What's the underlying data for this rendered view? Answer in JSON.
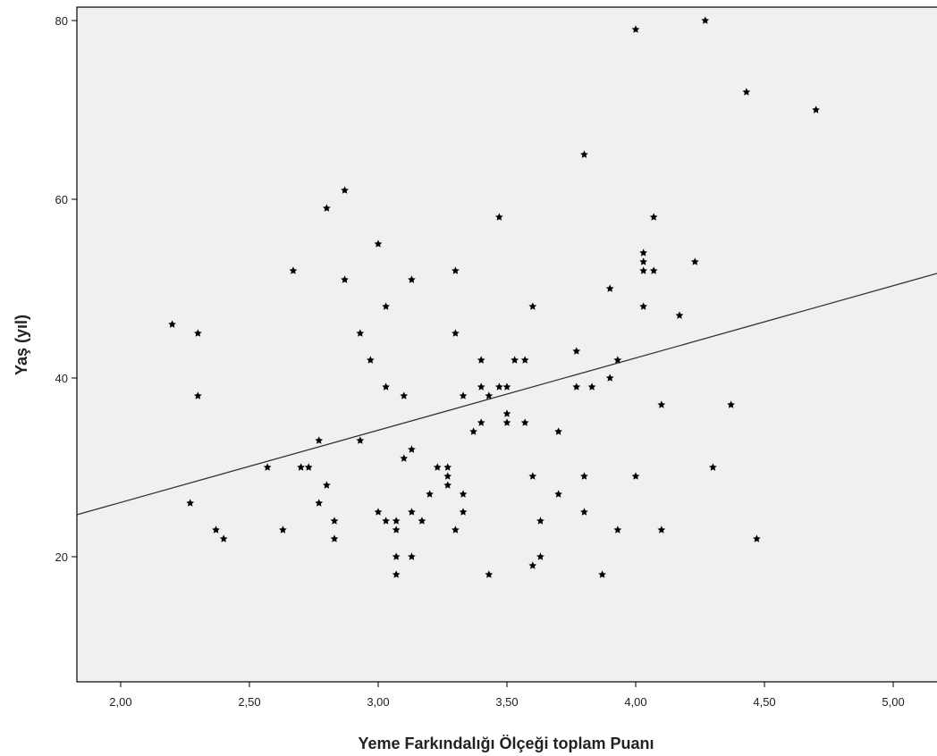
{
  "chart_data": {
    "type": "scatter",
    "title": "",
    "xlabel": "Yeme Farkındalığı Ölçeği toplam Puanı",
    "ylabel": "Yaş (yıl)",
    "xlim": [
      1.83,
      5.17
    ],
    "ylim": [
      6,
      81.5
    ],
    "x_ticks": [
      2.0,
      2.5,
      3.0,
      3.5,
      4.0,
      4.5,
      5.0
    ],
    "x_tick_labels": [
      "2,00",
      "2,50",
      "3,00",
      "3,50",
      "4,00",
      "4,50",
      "5,00"
    ],
    "y_ticks": [
      20,
      40,
      60,
      80
    ],
    "y_tick_labels": [
      "20",
      "40",
      "60",
      "80"
    ],
    "grid": false,
    "legend": "none",
    "plot_background": "#f0f0f0",
    "point_color": "#000000",
    "line_color": "#333333",
    "fit_line": {
      "x": [
        1.83,
        5.17
      ],
      "y": [
        24.7,
        51.7
      ]
    },
    "points": [
      [
        2.2,
        46
      ],
      [
        2.27,
        26
      ],
      [
        2.3,
        45
      ],
      [
        2.3,
        38
      ],
      [
        2.37,
        23
      ],
      [
        2.4,
        22
      ],
      [
        2.57,
        30
      ],
      [
        2.63,
        23
      ],
      [
        2.67,
        52
      ],
      [
        2.7,
        30
      ],
      [
        2.73,
        30
      ],
      [
        2.77,
        33
      ],
      [
        2.77,
        26
      ],
      [
        2.8,
        59
      ],
      [
        2.8,
        28
      ],
      [
        2.83,
        24
      ],
      [
        2.83,
        22
      ],
      [
        2.87,
        61
      ],
      [
        2.87,
        51
      ],
      [
        2.93,
        45
      ],
      [
        2.93,
        33
      ],
      [
        2.97,
        42
      ],
      [
        3.0,
        55
      ],
      [
        3.0,
        25
      ],
      [
        3.03,
        48
      ],
      [
        3.03,
        39
      ],
      [
        3.03,
        24
      ],
      [
        3.07,
        24
      ],
      [
        3.07,
        23
      ],
      [
        3.07,
        20
      ],
      [
        3.07,
        18
      ],
      [
        3.1,
        38
      ],
      [
        3.1,
        31
      ],
      [
        3.13,
        51
      ],
      [
        3.13,
        32
      ],
      [
        3.13,
        25
      ],
      [
        3.13,
        20
      ],
      [
        3.17,
        24
      ],
      [
        3.2,
        27
      ],
      [
        3.23,
        30
      ],
      [
        3.27,
        30
      ],
      [
        3.27,
        29
      ],
      [
        3.27,
        28
      ],
      [
        3.3,
        52
      ],
      [
        3.3,
        45
      ],
      [
        3.3,
        23
      ],
      [
        3.33,
        38
      ],
      [
        3.33,
        27
      ],
      [
        3.33,
        25
      ],
      [
        3.37,
        34
      ],
      [
        3.4,
        42
      ],
      [
        3.4,
        39
      ],
      [
        3.4,
        35
      ],
      [
        3.43,
        38
      ],
      [
        3.43,
        18
      ],
      [
        3.47,
        58
      ],
      [
        3.47,
        39
      ],
      [
        3.5,
        39
      ],
      [
        3.5,
        36
      ],
      [
        3.5,
        35
      ],
      [
        3.53,
        42
      ],
      [
        3.57,
        42
      ],
      [
        3.57,
        35
      ],
      [
        3.6,
        48
      ],
      [
        3.6,
        29
      ],
      [
        3.6,
        19
      ],
      [
        3.63,
        24
      ],
      [
        3.63,
        20
      ],
      [
        3.7,
        34
      ],
      [
        3.7,
        27
      ],
      [
        3.77,
        43
      ],
      [
        3.77,
        39
      ],
      [
        3.8,
        65
      ],
      [
        3.8,
        29
      ],
      [
        3.8,
        25
      ],
      [
        3.83,
        39
      ],
      [
        3.87,
        18
      ],
      [
        3.9,
        50
      ],
      [
        3.9,
        40
      ],
      [
        3.93,
        42
      ],
      [
        3.93,
        23
      ],
      [
        4.0,
        79
      ],
      [
        4.0,
        29
      ],
      [
        4.03,
        54
      ],
      [
        4.03,
        53
      ],
      [
        4.03,
        52
      ],
      [
        4.03,
        48
      ],
      [
        4.07,
        58
      ],
      [
        4.07,
        52
      ],
      [
        4.1,
        37
      ],
      [
        4.1,
        23
      ],
      [
        4.17,
        47
      ],
      [
        4.23,
        53
      ],
      [
        4.27,
        80
      ],
      [
        4.3,
        30
      ],
      [
        4.37,
        37
      ],
      [
        4.43,
        72
      ],
      [
        4.47,
        22
      ],
      [
        4.7,
        70
      ]
    ]
  }
}
